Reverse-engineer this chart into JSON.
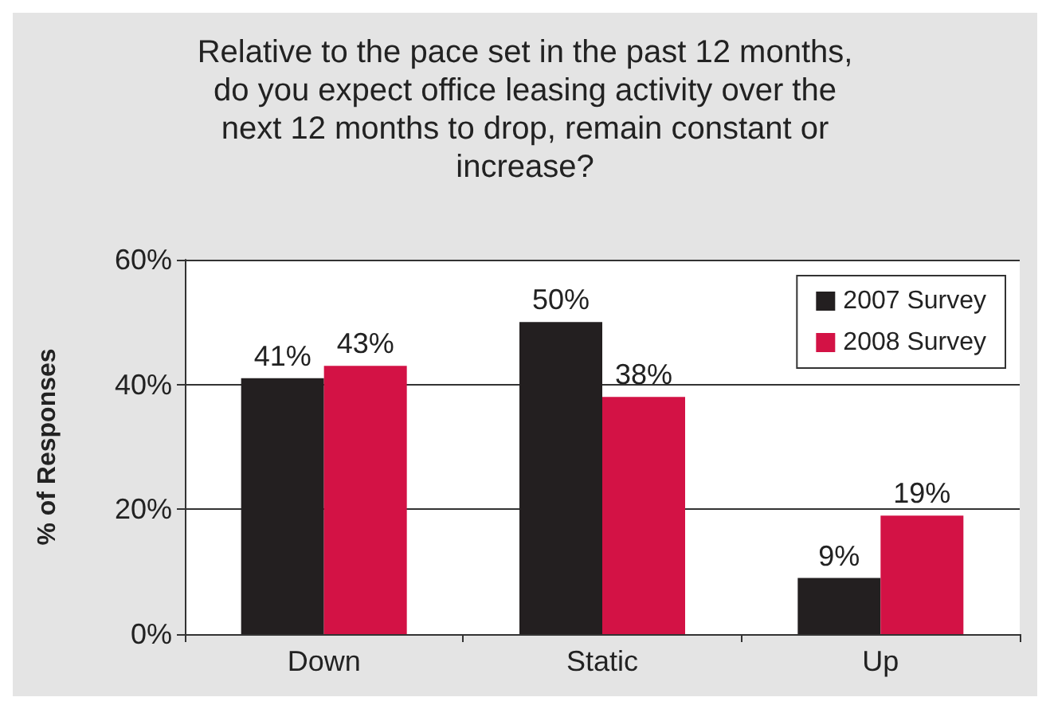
{
  "chart_data": {
    "type": "bar",
    "title": "Relative to the pace set in the past 12 months,\ndo you expect office leasing activity over the\nnext 12 months to drop, remain constant or\nincrease?",
    "ylabel": "% of Responses",
    "categories": [
      "Down",
      "Static",
      "Up"
    ],
    "series": [
      {
        "name": "2007 Survey",
        "color": "#231f20",
        "values": [
          41,
          50,
          9
        ],
        "value_labels": [
          "41%",
          "50%",
          "9%"
        ]
      },
      {
        "name": "2008 Survey",
        "color": "#d31245",
        "values": [
          43,
          38,
          19
        ],
        "value_labels": [
          "43%",
          "38%",
          "19%"
        ]
      }
    ],
    "ylim": [
      0,
      60
    ],
    "yticks": [
      {
        "value": 0,
        "label": "0%"
      },
      {
        "value": 20,
        "label": "20%"
      },
      {
        "value": 40,
        "label": "40%"
      },
      {
        "value": 60,
        "label": "60%"
      }
    ],
    "grid": "y",
    "legend": "top right"
  }
}
